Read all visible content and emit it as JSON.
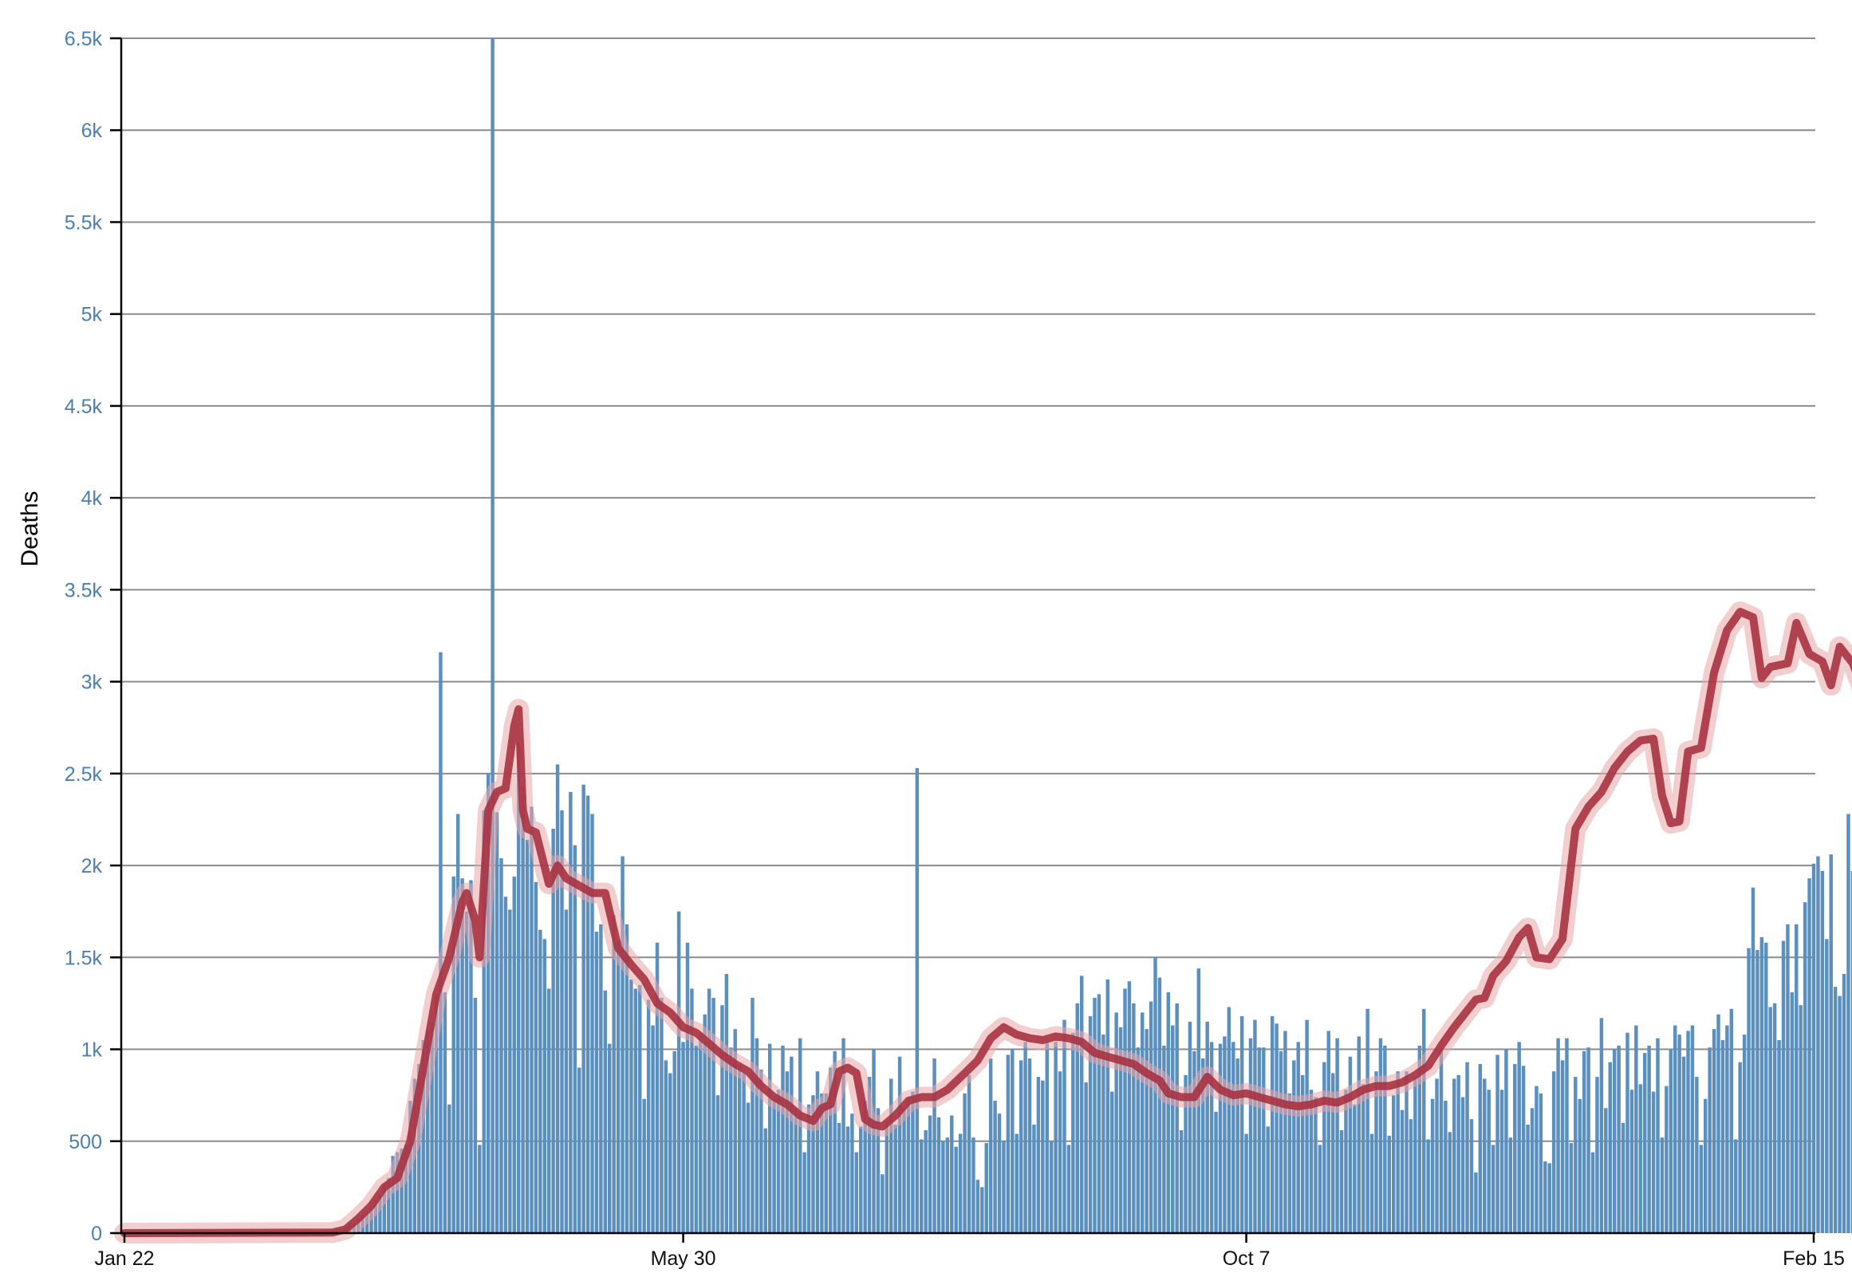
{
  "chart_data": {
    "type": "bar",
    "ylabel": "Deaths",
    "xlabel": "",
    "ylim": [
      0,
      6500
    ],
    "y_ticks": [
      {
        "value": 0,
        "label": "0"
      },
      {
        "value": 500,
        "label": "500"
      },
      {
        "value": 1000,
        "label": "1k"
      },
      {
        "value": 1500,
        "label": "1.5k"
      },
      {
        "value": 2000,
        "label": "2k"
      },
      {
        "value": 2500,
        "label": "2.5k"
      },
      {
        "value": 3000,
        "label": "3k"
      },
      {
        "value": 3500,
        "label": "3.5k"
      },
      {
        "value": 4000,
        "label": "4k"
      },
      {
        "value": 4500,
        "label": "4.5k"
      },
      {
        "value": 5000,
        "label": "5k"
      },
      {
        "value": 5500,
        "label": "5.5k"
      },
      {
        "value": 6000,
        "label": "6k"
      },
      {
        "value": 6500,
        "label": "6.5k"
      }
    ],
    "x_ticks": [
      {
        "date": "2020-01-22",
        "label": "Jan 22"
      },
      {
        "date": "2020-05-30",
        "label": "May 30"
      },
      {
        "date": "2020-10-07",
        "label": "Oct 7"
      },
      {
        "date": "2021-02-15",
        "label": "Feb 15"
      }
    ],
    "grid": true,
    "colors": {
      "bars": "#5b8fbe",
      "average_line": "#a83240",
      "average_halo": "#e8a5a8",
      "y_tick_labels": "#4a7fb0"
    },
    "series": [
      {
        "kind": "daily_bars",
        "start_date": "2020-01-22",
        "values": [
          0,
          0,
          0,
          0,
          0,
          0,
          0,
          0,
          0,
          0,
          0,
          0,
          0,
          0,
          0,
          0,
          0,
          0,
          0,
          0,
          0,
          0,
          0,
          0,
          0,
          0,
          0,
          0,
          0,
          0,
          0,
          0,
          0,
          0,
          0,
          0,
          0,
          1,
          1,
          2,
          3,
          4,
          5,
          6,
          7,
          9,
          10,
          12,
          16,
          22,
          26,
          36,
          58,
          56,
          80,
          100,
          120,
          150,
          180,
          210,
          270,
          300,
          420,
          440,
          460,
          480,
          720,
          840,
          920,
          1050,
          1100,
          1150,
          1300,
          3160,
          1310,
          700,
          1940,
          2280,
          1930,
          1750,
          1920,
          1280,
          480,
          2300,
          2500,
          6500,
          2290,
          2040,
          1830,
          1760,
          1940,
          2670,
          2430,
          2140,
          2320,
          1910,
          1650,
          1600,
          1330,
          2200,
          2550,
          2300,
          1760,
          2400,
          2110,
          900,
          2440,
          2380,
          2280,
          1640,
          1680,
          1320,
          1030,
          1730,
          1590,
          2050,
          1680,
          1380,
          1330,
          1350,
          730,
          1270,
          1130,
          1580,
          1280,
          940,
          870,
          990,
          1750,
          1040,
          1580,
          1330,
          1020,
          1090,
          1190,
          1330,
          1280,
          750,
          1240,
          1410,
          1010,
          1110,
          920,
          870,
          710,
          1280,
          1060,
          890,
          570,
          1030,
          750,
          780,
          1020,
          880,
          960,
          680,
          1060,
          440,
          700,
          750,
          880,
          760,
          760,
          900,
          990,
          600,
          1060,
          580,
          650,
          440,
          580,
          720,
          850,
          1000,
          680,
          320,
          610,
          840,
          590,
          960,
          680,
          740,
          770,
          2530,
          510,
          560,
          640,
          950,
          630,
          500,
          520,
          640,
          470,
          540,
          760,
          860,
          520,
          290,
          250,
          490,
          950,
          720,
          650,
          500,
          970,
          1000,
          540,
          940,
          1040,
          950,
          590,
          850,
          830,
          1040,
          500,
          1040,
          880,
          1160,
          480,
          1090,
          1250,
          1400,
          820,
          1180,
          1280,
          1300,
          1080,
          1380,
          770,
          1200,
          1120,
          1330,
          1370,
          1250,
          1010,
          1200,
          1110,
          1260,
          1500,
          1390,
          1020,
          1310,
          1130,
          1250,
          560,
          860,
          1150,
          990,
          1440,
          950,
          1150,
          1040,
          660,
          1030,
          1070,
          1230,
          1040,
          950,
          1180,
          540,
          1060,
          1160,
          1010,
          1010,
          580,
          1180,
          1140,
          990,
          1100,
          760,
          940,
          1040,
          860,
          1160,
          780,
          740,
          480,
          930,
          1100,
          870,
          1060,
          560,
          780,
          960,
          700,
          1070,
          810,
          1220,
          540,
          880,
          1060,
          1020,
          530,
          750,
          880,
          670,
          880,
          620,
          850,
          1020,
          1220,
          510,
          730,
          840,
          1000,
          720,
          550,
          840,
          860,
          740,
          930,
          620,
          330,
          920,
          840,
          780,
          480,
          970,
          780,
          1000,
          520,
          920,
          1040,
          910,
          590,
          680,
          800,
          760,
          390,
          380,
          880,
          1060,
          940,
          1060,
          490,
          850,
          730,
          990,
          1010,
          440,
          850,
          1170,
          680,
          930,
          1000,
          1020,
          600,
          1090,
          780,
          1130,
          810,
          980,
          1020,
          770,
          1060,
          520,
          800,
          1000,
          1130,
          1080,
          960,
          1100,
          1130,
          850,
          480,
          730,
          1010,
          1110,
          1190,
          1050,
          1130,
          1220,
          510,
          930,
          1080,
          1550,
          1880,
          1540,
          1610,
          1580,
          1230,
          1250,
          1050,
          1590,
          1680,
          1310,
          1680,
          1240,
          1800,
          1930,
          2010,
          2050,
          1970,
          1600,
          2060,
          1340,
          1290,
          1410,
          2280,
          1970,
          1700,
          1750,
          1850,
          1380,
          1920,
          1630,
          1370,
          1290,
          1870,
          2500,
          2590,
          2860,
          1530,
          2420,
          1990,
          1980,
          2140,
          3430,
          3010,
          1450,
          2300,
          1450,
          3000,
          2390,
          1920,
          3430,
          2960,
          3100,
          1060,
          3430,
          3430,
          2380,
          1700,
          2980,
          1750,
          3390,
          2610,
          3020,
          1250,
          2580,
          2140,
          3330,
          3670,
          2900,
          2740,
          1660,
          1930,
          2880,
          3430,
          1160,
          1500,
          3780,
          3230,
          2480,
          3000,
          1640,
          1080,
          2510,
          3290,
          3580,
          3870,
          2600,
          2260,
          3370,
          3540,
          3600,
          2010,
          3750,
          4160,
          4430,
          3760,
          3280,
          2470,
          3230,
          4080,
          3040,
          2860,
          2780,
          3230,
          4340,
          2470,
          3730,
          3410,
          2050,
          1820,
          3370,
          2180,
          3250,
          3750,
          3000,
          3470,
          2470,
          1840,
          3810,
          2880,
          3950,
          3380,
          2430,
          2280,
          4390,
          3500,
          2390,
          2530,
          4020,
          3450,
          2940,
          1940,
          3430,
          2660,
          3690,
          3550,
          3100,
          4070,
          3420,
          3160,
          1620,
          2450,
          2270,
          3020,
          1810,
          3900,
          3620,
          2740,
          3060,
          2950,
          3810,
          3520,
          2850,
          2720,
          3260,
          3990,
          2190,
          3630,
          3310,
          2800,
          3180,
          2220,
          5130,
          3390,
          2900,
          3600,
          2700,
          2370,
          2700,
          1840,
          3560,
          3310,
          2520,
          3460,
          2980,
          2720,
          3630,
          3480,
          1820,
          5520,
          3000,
          3160,
          3870,
          1330,
          1170
        ]
      },
      {
        "kind": "moving_average",
        "points": [
          [
            "2020-01-22",
            0
          ],
          [
            "2020-03-10",
            3
          ],
          [
            "2020-03-13",
            20
          ],
          [
            "2020-03-16",
            80
          ],
          [
            "2020-03-19",
            150
          ],
          [
            "2020-03-22",
            250
          ],
          [
            "2020-03-25",
            300
          ],
          [
            "2020-03-28",
            500
          ],
          [
            "2020-03-31",
            900
          ],
          [
            "2020-04-03",
            1300
          ],
          [
            "2020-04-06",
            1500
          ],
          [
            "2020-04-09",
            1800
          ],
          [
            "2020-04-10",
            1850
          ],
          [
            "2020-04-12",
            1700
          ],
          [
            "2020-04-13",
            1500
          ],
          [
            "2020-04-15",
            2300
          ],
          [
            "2020-04-17",
            2400
          ],
          [
            "2020-04-19",
            2420
          ],
          [
            "2020-04-21",
            2760
          ],
          [
            "2020-04-22",
            2850
          ],
          [
            "2020-04-23",
            2300
          ],
          [
            "2020-04-24",
            2200
          ],
          [
            "2020-04-26",
            2180
          ],
          [
            "2020-04-29",
            1900
          ],
          [
            "2020-05-01",
            2000
          ],
          [
            "2020-05-03",
            1930
          ],
          [
            "2020-05-06",
            1890
          ],
          [
            "2020-05-09",
            1850
          ],
          [
            "2020-05-12",
            1850
          ],
          [
            "2020-05-15",
            1550
          ],
          [
            "2020-05-18",
            1460
          ],
          [
            "2020-05-21",
            1380
          ],
          [
            "2020-05-24",
            1250
          ],
          [
            "2020-05-27",
            1200
          ],
          [
            "2020-05-30",
            1120
          ],
          [
            "2020-06-02",
            1090
          ],
          [
            "2020-06-05",
            1030
          ],
          [
            "2020-06-08",
            970
          ],
          [
            "2020-06-11",
            920
          ],
          [
            "2020-06-14",
            880
          ],
          [
            "2020-06-17",
            800
          ],
          [
            "2020-06-20",
            740
          ],
          [
            "2020-06-23",
            700
          ],
          [
            "2020-06-26",
            640
          ],
          [
            "2020-06-29",
            610
          ],
          [
            "2020-07-01",
            680
          ],
          [
            "2020-07-03",
            700
          ],
          [
            "2020-07-05",
            880
          ],
          [
            "2020-07-07",
            900
          ],
          [
            "2020-07-09",
            870
          ],
          [
            "2020-07-11",
            620
          ],
          [
            "2020-07-13",
            590
          ],
          [
            "2020-07-15",
            580
          ],
          [
            "2020-07-18",
            640
          ],
          [
            "2020-07-21",
            720
          ],
          [
            "2020-07-24",
            740
          ],
          [
            "2020-07-27",
            740
          ],
          [
            "2020-07-30",
            780
          ],
          [
            "2020-08-03",
            870
          ],
          [
            "2020-08-06",
            940
          ],
          [
            "2020-08-09",
            1060
          ],
          [
            "2020-08-12",
            1120
          ],
          [
            "2020-08-15",
            1080
          ],
          [
            "2020-08-18",
            1060
          ],
          [
            "2020-08-21",
            1050
          ],
          [
            "2020-08-24",
            1070
          ],
          [
            "2020-08-27",
            1060
          ],
          [
            "2020-08-30",
            1040
          ],
          [
            "2020-09-02",
            980
          ],
          [
            "2020-09-05",
            960
          ],
          [
            "2020-09-08",
            940
          ],
          [
            "2020-09-11",
            920
          ],
          [
            "2020-09-14",
            870
          ],
          [
            "2020-09-17",
            830
          ],
          [
            "2020-09-19",
            760
          ],
          [
            "2020-09-22",
            740
          ],
          [
            "2020-09-25",
            740
          ],
          [
            "2020-09-28",
            850
          ],
          [
            "2020-10-01",
            780
          ],
          [
            "2020-10-04",
            750
          ],
          [
            "2020-10-07",
            760
          ],
          [
            "2020-10-10",
            740
          ],
          [
            "2020-10-13",
            720
          ],
          [
            "2020-10-16",
            700
          ],
          [
            "2020-10-19",
            690
          ],
          [
            "2020-10-22",
            700
          ],
          [
            "2020-10-25",
            720
          ],
          [
            "2020-10-28",
            710
          ],
          [
            "2020-10-31",
            740
          ],
          [
            "2020-11-03",
            780
          ],
          [
            "2020-11-06",
            800
          ],
          [
            "2020-11-09",
            800
          ],
          [
            "2020-11-12",
            820
          ],
          [
            "2020-11-15",
            860
          ],
          [
            "2020-11-18",
            910
          ],
          [
            "2020-11-21",
            1020
          ],
          [
            "2020-11-24",
            1120
          ],
          [
            "2020-11-27",
            1210
          ],
          [
            "2020-11-29",
            1270
          ],
          [
            "2020-12-01",
            1280
          ],
          [
            "2020-12-03",
            1400
          ],
          [
            "2020-12-06",
            1480
          ],
          [
            "2020-12-09",
            1610
          ],
          [
            "2020-12-11",
            1660
          ],
          [
            "2020-12-13",
            1500
          ],
          [
            "2020-12-16",
            1490
          ],
          [
            "2020-12-19",
            1600
          ],
          [
            "2020-12-22",
            2200
          ],
          [
            "2020-12-25",
            2320
          ],
          [
            "2020-12-28",
            2400
          ],
          [
            "2020-12-31",
            2530
          ],
          [
            "2021-01-03",
            2620
          ],
          [
            "2021-01-06",
            2680
          ],
          [
            "2021-01-09",
            2690
          ],
          [
            "2021-01-11",
            2380
          ],
          [
            "2021-01-13",
            2230
          ],
          [
            "2021-01-15",
            2240
          ],
          [
            "2021-01-17",
            2620
          ],
          [
            "2021-01-20",
            2640
          ],
          [
            "2021-01-23",
            3050
          ],
          [
            "2021-01-26",
            3280
          ],
          [
            "2021-01-29",
            3380
          ],
          [
            "2021-02-01",
            3350
          ],
          [
            "2021-02-03",
            3020
          ],
          [
            "2021-02-05",
            3080
          ],
          [
            "2021-02-07",
            3090
          ],
          [
            "2021-02-09",
            3100
          ],
          [
            "2021-02-11",
            3320
          ],
          [
            "2021-02-14",
            3150
          ],
          [
            "2021-02-17",
            3110
          ],
          [
            "2021-02-19",
            2980
          ],
          [
            "2021-02-21",
            3190
          ],
          [
            "2021-02-24",
            3100
          ],
          [
            "2021-02-26",
            2980
          ],
          [
            "2021-02-27",
            2790
          ],
          [
            "2021-02-28",
            3040
          ],
          [
            "2021-03-01",
            3100
          ],
          [
            "2021-03-03",
            3110
          ],
          [
            "2021-03-05",
            3060
          ]
        ]
      }
    ]
  }
}
